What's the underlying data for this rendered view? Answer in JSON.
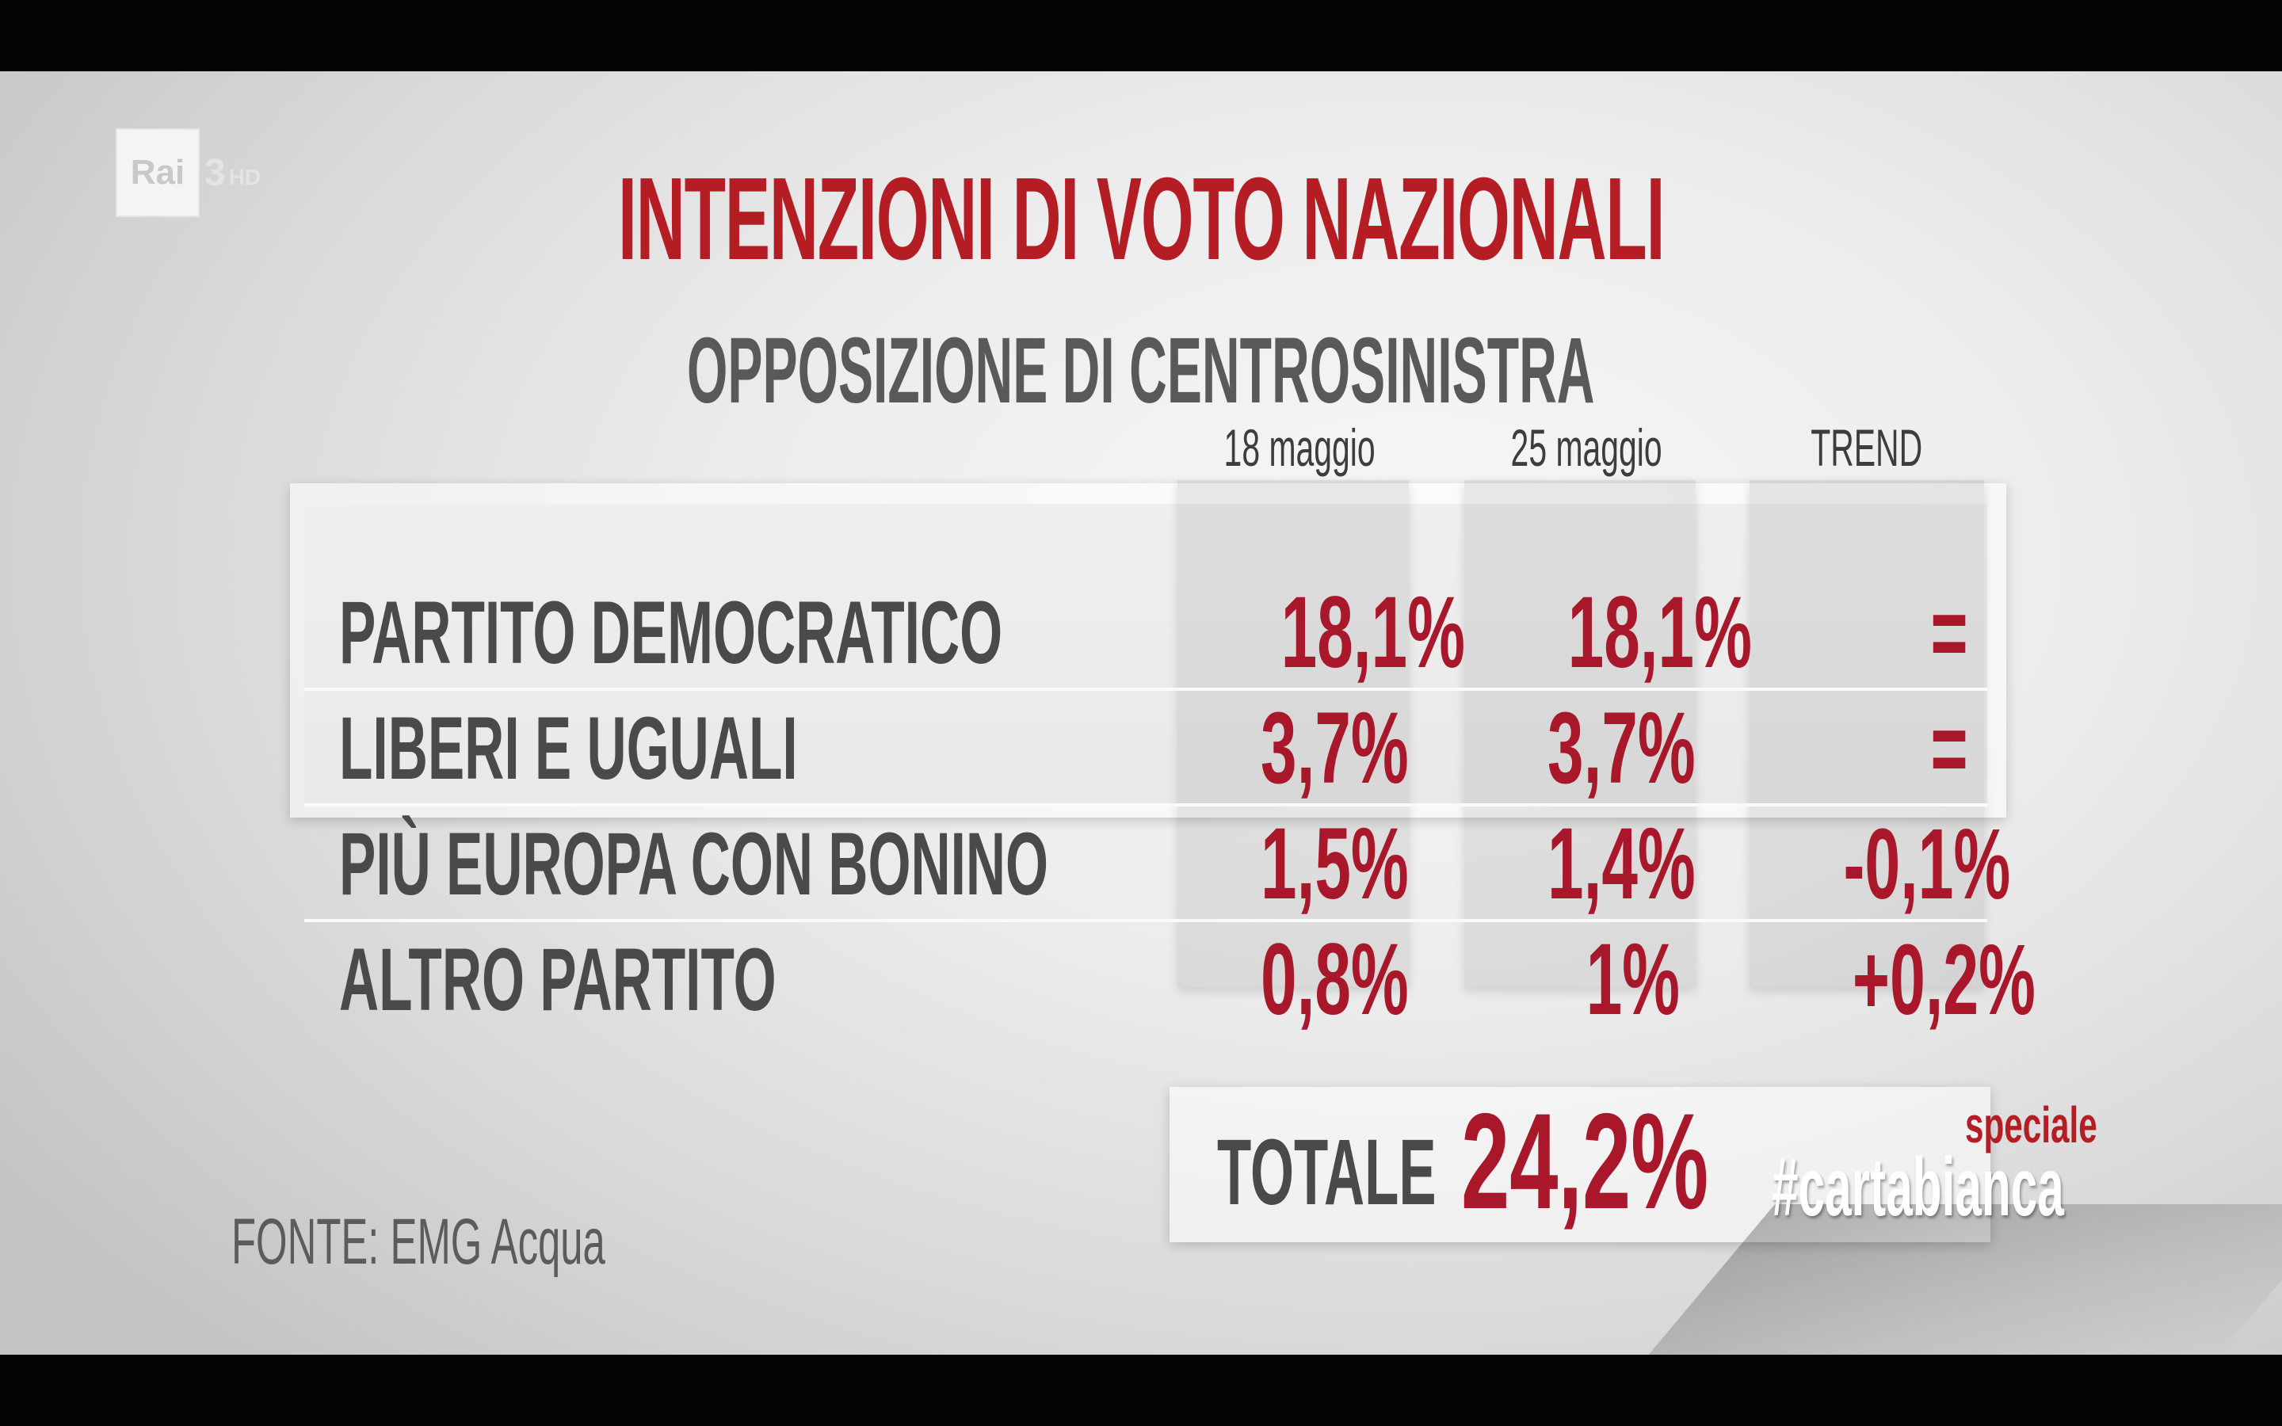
{
  "logo": {
    "brand": "Rai",
    "channel": "3",
    "suffix": "HD"
  },
  "title": "INTENZIONI DI VOTO NAZIONALI",
  "subtitle": "OPPOSIZIONE DI CENTROSINISTRA",
  "columns": [
    "18 maggio",
    "25 maggio",
    "TREND"
  ],
  "rows": [
    {
      "party": "PARTITO DEMOCRATICO",
      "may18": "18,1%",
      "may25": "18,1%",
      "trend": "="
    },
    {
      "party": "LIBERI E UGUALI",
      "may18": "3,7%",
      "may25": "3,7%",
      "trend": "="
    },
    {
      "party": "PIÙ EUROPA CON BONINO",
      "may18": "1,5%",
      "may25": "1,4%",
      "trend": "-0,1%"
    },
    {
      "party": "ALTRO PARTITO",
      "may18": "0,8%",
      "may25": "1%",
      "trend": "+0,2%"
    }
  ],
  "total": {
    "label": "TOTALE",
    "value": "24,2%"
  },
  "source": "FONTE: EMG Acqua",
  "branding": {
    "speciale": "speciale",
    "hashtag": "#cartabianca"
  },
  "colors": {
    "accent_red": "#a8182a",
    "title_red": "#b51d25",
    "text_gray": "#4a4a4a"
  },
  "chart_data": {
    "type": "table",
    "title": "INTENZIONI DI VOTO NAZIONALI",
    "subtitle": "OPPOSIZIONE DI CENTROSINISTRA",
    "columns": [
      "18 maggio",
      "25 maggio",
      "TREND"
    ],
    "categories": [
      "PARTITO DEMOCRATICO",
      "LIBERI E UGUALI",
      "PIÙ EUROPA CON BONINO",
      "ALTRO PARTITO"
    ],
    "series": [
      {
        "name": "18 maggio",
        "values": [
          18.1,
          3.7,
          1.5,
          0.8
        ]
      },
      {
        "name": "25 maggio",
        "values": [
          18.1,
          3.7,
          1.4,
          1.0
        ]
      },
      {
        "name": "TREND",
        "values": [
          0,
          0,
          -0.1,
          0.2
        ]
      }
    ],
    "total": 24.2,
    "unit": "%"
  }
}
